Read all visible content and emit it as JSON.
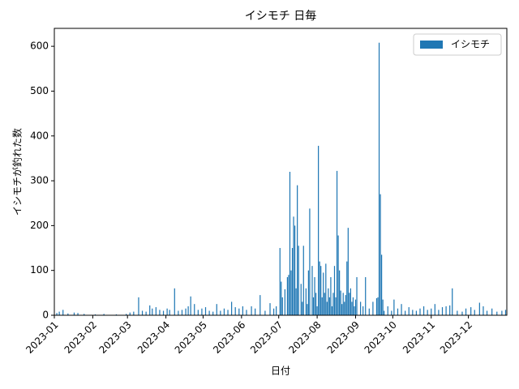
{
  "chart_data": {
    "type": "bar",
    "title": "イシモチ 日毎",
    "xlabel": "日付",
    "ylabel": "イシモチが釣れた数",
    "x": [
      "2023-01-03",
      "2023-01-05",
      "2023-01-08",
      "2023-01-12",
      "2023-01-17",
      "2023-01-20",
      "2023-01-25",
      "2023-02-03",
      "2023-02-10",
      "2023-02-20",
      "2023-02-28",
      "2023-03-03",
      "2023-03-06",
      "2023-03-10",
      "2023-03-13",
      "2023-03-16",
      "2023-03-19",
      "2023-03-21",
      "2023-03-24",
      "2023-03-27",
      "2023-03-30",
      "2023-04-02",
      "2023-04-04",
      "2023-04-08",
      "2023-04-11",
      "2023-04-14",
      "2023-04-17",
      "2023-04-19",
      "2023-04-21",
      "2023-04-24",
      "2023-04-27",
      "2023-04-30",
      "2023-05-03",
      "2023-05-06",
      "2023-05-09",
      "2023-05-12",
      "2023-05-15",
      "2023-05-18",
      "2023-05-21",
      "2023-05-24",
      "2023-05-27",
      "2023-05-30",
      "2023-06-02",
      "2023-06-05",
      "2023-06-09",
      "2023-06-12",
      "2023-06-16",
      "2023-06-20",
      "2023-06-24",
      "2023-06-27",
      "2023-06-29",
      "2023-07-02",
      "2023-07-03",
      "2023-07-04",
      "2023-07-06",
      "2023-07-08",
      "2023-07-09",
      "2023-07-10",
      "2023-07-11",
      "2023-07-12",
      "2023-07-13",
      "2023-07-14",
      "2023-07-15",
      "2023-07-16",
      "2023-07-17",
      "2023-07-19",
      "2023-07-20",
      "2023-07-21",
      "2023-07-23",
      "2023-07-24",
      "2023-07-25",
      "2023-07-26",
      "2023-07-28",
      "2023-07-29",
      "2023-07-30",
      "2023-07-31",
      "2023-08-01",
      "2023-08-02",
      "2023-08-03",
      "2023-08-04",
      "2023-08-05",
      "2023-08-06",
      "2023-08-07",
      "2023-08-08",
      "2023-08-09",
      "2023-08-10",
      "2023-08-11",
      "2023-08-12",
      "2023-08-13",
      "2023-08-14",
      "2023-08-15",
      "2023-08-16",
      "2023-08-17",
      "2023-08-18",
      "2023-08-19",
      "2023-08-20",
      "2023-08-21",
      "2023-08-22",
      "2023-08-23",
      "2023-08-24",
      "2023-08-25",
      "2023-08-26",
      "2023-08-27",
      "2023-08-28",
      "2023-08-29",
      "2023-08-30",
      "2023-08-31",
      "2023-09-01",
      "2023-09-02",
      "2023-09-05",
      "2023-09-07",
      "2023-09-09",
      "2023-09-12",
      "2023-09-15",
      "2023-09-18",
      "2023-09-19",
      "2023-09-20",
      "2023-09-21",
      "2023-09-22",
      "2023-09-23",
      "2023-09-24",
      "2023-09-27",
      "2023-09-30",
      "2023-10-02",
      "2023-10-05",
      "2023-10-08",
      "2023-10-11",
      "2023-10-14",
      "2023-10-17",
      "2023-10-20",
      "2023-10-23",
      "2023-10-26",
      "2023-10-29",
      "2023-11-01",
      "2023-11-04",
      "2023-11-07",
      "2023-11-10",
      "2023-11-13",
      "2023-11-16",
      "2023-11-18",
      "2023-11-22",
      "2023-11-26",
      "2023-11-29",
      "2023-12-03",
      "2023-12-06",
      "2023-12-10",
      "2023-12-13",
      "2023-12-16",
      "2023-12-20",
      "2023-12-24",
      "2023-12-28",
      "2023-12-31"
    ],
    "series": [
      {
        "name": "イシモチ",
        "color": "#1f77b4",
        "values": [
          5,
          8,
          12,
          4,
          6,
          5,
          3,
          2,
          3,
          2,
          3,
          6,
          8,
          40,
          10,
          8,
          22,
          15,
          18,
          12,
          10,
          15,
          12,
          60,
          10,
          12,
          15,
          20,
          42,
          25,
          12,
          15,
          18,
          10,
          8,
          25,
          10,
          15,
          12,
          30,
          18,
          15,
          20,
          12,
          20,
          15,
          45,
          10,
          27,
          15,
          20,
          150,
          75,
          40,
          58,
          85,
          90,
          320,
          100,
          150,
          220,
          200,
          60,
          290,
          155,
          70,
          30,
          155,
          60,
          25,
          100,
          238,
          110,
          40,
          85,
          50,
          20,
          378,
          120,
          110,
          40,
          95,
          50,
          115,
          30,
          60,
          40,
          85,
          20,
          50,
          110,
          40,
          322,
          178,
          100,
          55,
          25,
          50,
          30,
          45,
          120,
          195,
          50,
          60,
          30,
          40,
          20,
          35,
          85,
          30,
          20,
          85,
          15,
          30,
          38,
          40,
          608,
          270,
          135,
          35,
          10,
          20,
          10,
          35,
          15,
          25,
          10,
          18,
          12,
          10,
          15,
          20,
          12,
          15,
          25,
          12,
          18,
          20,
          22,
          60,
          10,
          8,
          15,
          18,
          12,
          28,
          20,
          10,
          15,
          8,
          10,
          12
        ]
      }
    ],
    "xlim": [
      "2023-01-01",
      "2023-12-31"
    ],
    "xticks": [
      {
        "value": "2023-01-01",
        "label": "2023-01"
      },
      {
        "value": "2023-02-01",
        "label": "2023-02"
      },
      {
        "value": "2023-03-01",
        "label": "2023-03"
      },
      {
        "value": "2023-04-01",
        "label": "2023-04"
      },
      {
        "value": "2023-05-01",
        "label": "2023-05"
      },
      {
        "value": "2023-06-01",
        "label": "2023-06"
      },
      {
        "value": "2023-07-01",
        "label": "2023-07"
      },
      {
        "value": "2023-08-01",
        "label": "2023-08"
      },
      {
        "value": "2023-09-01",
        "label": "2023-09"
      },
      {
        "value": "2023-10-01",
        "label": "2023-10"
      },
      {
        "value": "2023-11-01",
        "label": "2023-11"
      },
      {
        "value": "2023-12-01",
        "label": "2023-12"
      }
    ],
    "ylim": [
      0,
      640
    ],
    "yticks": [
      0,
      100,
      200,
      300,
      400,
      500,
      600
    ],
    "legend": "upper right"
  }
}
